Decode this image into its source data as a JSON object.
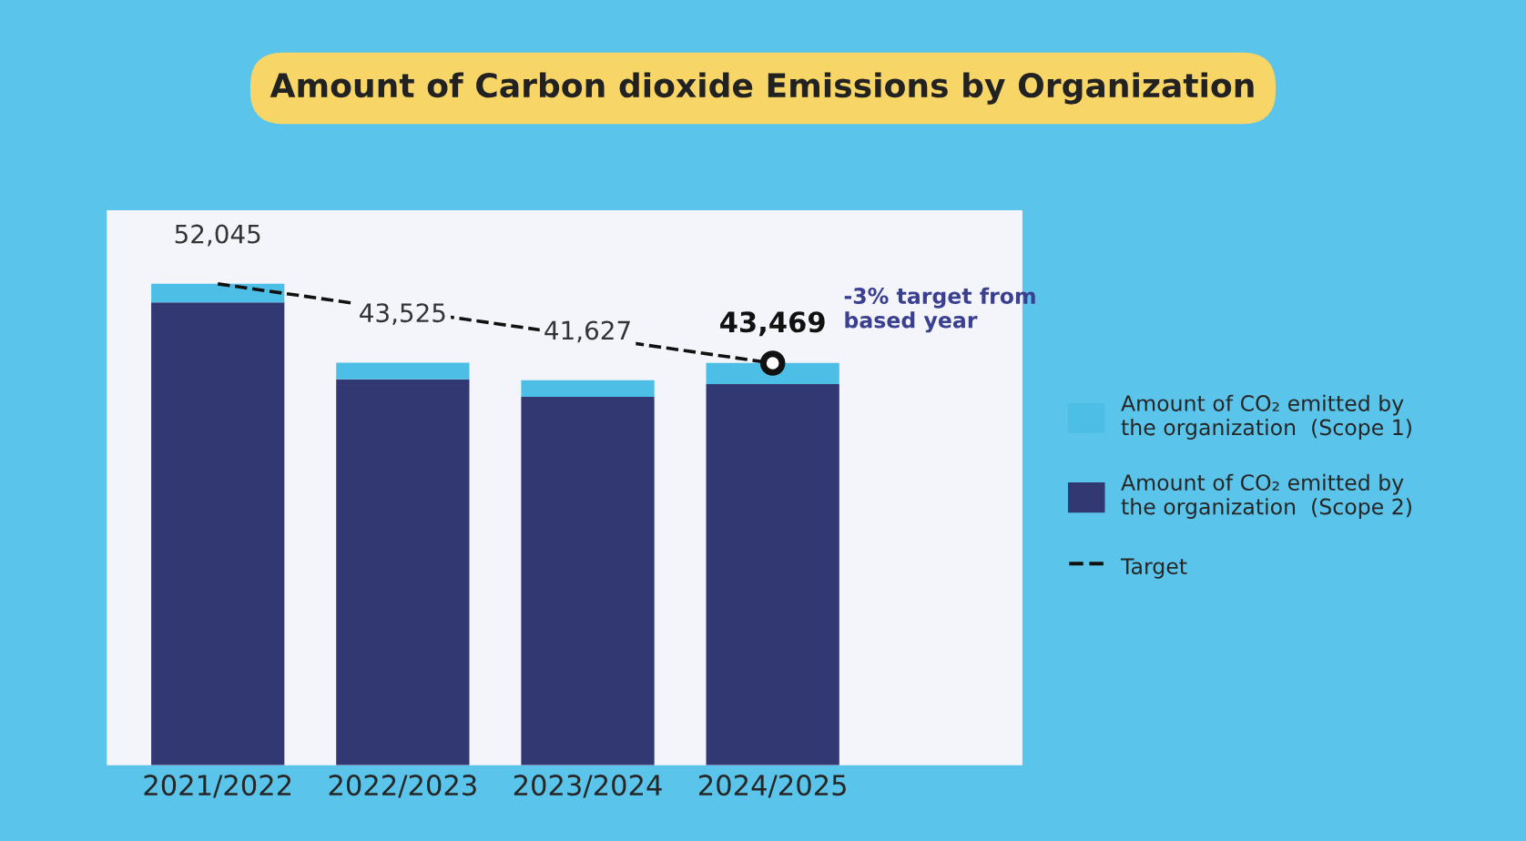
{
  "chart_data": {
    "type": "bar",
    "title": "Amount of Carbon dioxide Emissions by Organization",
    "categories": [
      "2021/2022",
      "2022/2023",
      "2023/2024",
      "2024/2025"
    ],
    "stacked": true,
    "ylim": [
      0,
      60000
    ],
    "series": [
      {
        "name": "Amount of CO₂ emitted by\nthe organization  (Scope 2)",
        "color": "#313872",
        "values": [
          50045,
          41725,
          39827,
          41200
        ]
      },
      {
        "name": "Amount of CO₂ emitted by\nthe organization  (Scope 1)",
        "color": "#4dbfe6",
        "values": [
          2000,
          1800,
          1800,
          2300
        ]
      },
      {
        "name": "Target",
        "type": "line",
        "color": "#111111",
        "line_style": "dashed",
        "marker": "none",
        "values": [
          52045,
          null,
          null,
          43469
        ]
      },
      {
        "type": "scatter",
        "color": "#111111",
        "marker": "circle",
        "values": [
          null,
          null,
          null,
          43469
        ],
        "value_labels": [
          null,
          null,
          null,
          "43,469"
        ]
      }
    ],
    "totals": [
      "52,045",
      "43,525",
      "41,627",
      null
    ],
    "annotations": [
      "-3% target from\nbased year"
    ],
    "legend": "right",
    "grid": false,
    "tick_labels": "x"
  }
}
